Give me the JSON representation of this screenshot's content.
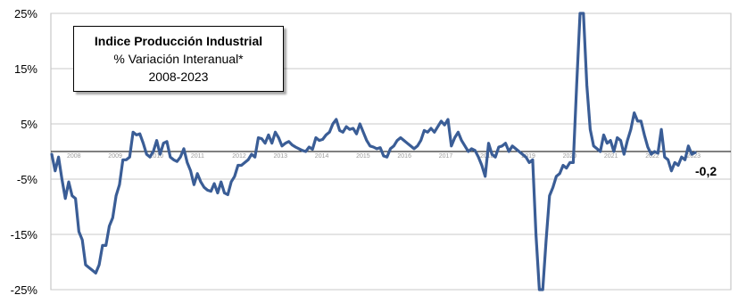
{
  "chart_data": {
    "type": "line",
    "title": "Indice Producción Industrial",
    "subtitle": "% Variación Interanual*",
    "period": "2008-2023",
    "y_ticks": [
      "25%",
      "15%",
      "5%",
      "-5%",
      "-15%",
      "-25%"
    ],
    "ylim": [
      -25,
      25
    ],
    "x_ticks": [
      "2008",
      "2009",
      "2010",
      "2011",
      "2012",
      "2013",
      "2014",
      "2015",
      "2016",
      "2017",
      "2018",
      "2019",
      "2020",
      "2021",
      "2022",
      "2023"
    ],
    "grid": "horizontal",
    "line_color": "#3a5d96",
    "last_value_label": "-0,2",
    "series": [
      {
        "values": [
          -0.5,
          -3.5,
          -1.0,
          -5.0,
          -8.5,
          -5.5,
          -8.0,
          -8.5,
          -14.5,
          -16.0,
          -20.5,
          -21.0,
          -21.5,
          -22.0,
          -20.5,
          -17.0,
          -17.0,
          -13.5,
          -12.0,
          -8.0,
          -6.0,
          -1.5,
          -1.5,
          -1.0,
          3.5,
          3.0,
          3.2,
          1.5,
          -0.5,
          -1.0,
          0.0,
          2.0,
          -0.5,
          1.5,
          1.8,
          -1.0,
          -1.5,
          -1.8,
          -1.0,
          0.5,
          -2.0,
          -3.5,
          -6.0,
          -4.0,
          -5.5,
          -6.5,
          -7.0,
          -7.2,
          -5.8,
          -7.5,
          -5.5,
          -7.5,
          -7.8,
          -5.5,
          -4.5,
          -2.5,
          -2.5,
          -2.0,
          -1.5,
          -0.5,
          -1.0,
          2.5,
          2.3,
          1.5,
          3.0,
          1.5,
          3.5,
          2.5,
          1.0,
          1.5,
          1.8,
          1.2,
          0.8,
          0.5,
          0.2,
          0.0,
          0.8,
          0.4,
          2.5,
          2.0,
          2.2,
          3.0,
          3.5,
          5.0,
          5.8,
          3.8,
          3.5,
          4.5,
          4.0,
          4.2,
          3.2,
          5.0,
          3.5,
          2.0,
          1.0,
          0.8,
          0.5,
          0.7,
          -0.8,
          -1.0,
          0.5,
          1.0,
          2.0,
          2.5,
          2.0,
          1.5,
          1.0,
          0.5,
          1.0,
          2.0,
          3.8,
          3.5,
          4.2,
          3.5,
          4.5,
          5.5,
          4.8,
          5.8,
          1.0,
          2.5,
          3.5,
          2.0,
          1.0,
          0.0,
          0.5,
          0.2,
          -1.0,
          -2.5,
          -4.5,
          1.5,
          -0.5,
          -1.0,
          0.8,
          1.0,
          1.5,
          0.0,
          1.0,
          0.5,
          0.0,
          -0.5,
          -1.0,
          -2.0,
          -1.5,
          -15.0,
          -27.0,
          -25.5,
          -16.0,
          -8.0,
          -6.5,
          -4.5,
          -4.0,
          -2.5,
          -3.0,
          -2.0,
          -2.0,
          12.0,
          32.0,
          30.0,
          12.0,
          4.0,
          1.0,
          0.5,
          0.0,
          3.0,
          1.5,
          2.0,
          0.0,
          2.5,
          2.0,
          -0.5,
          2.0,
          4.0,
          7.0,
          5.5,
          5.5,
          3.0,
          0.8,
          -0.5,
          0.0,
          -0.3,
          4.0,
          -1.0,
          -1.5,
          -3.5,
          -2.0,
          -2.5,
          -1.0,
          -1.5,
          1.0,
          -0.5,
          -0.2
        ]
      }
    ]
  }
}
